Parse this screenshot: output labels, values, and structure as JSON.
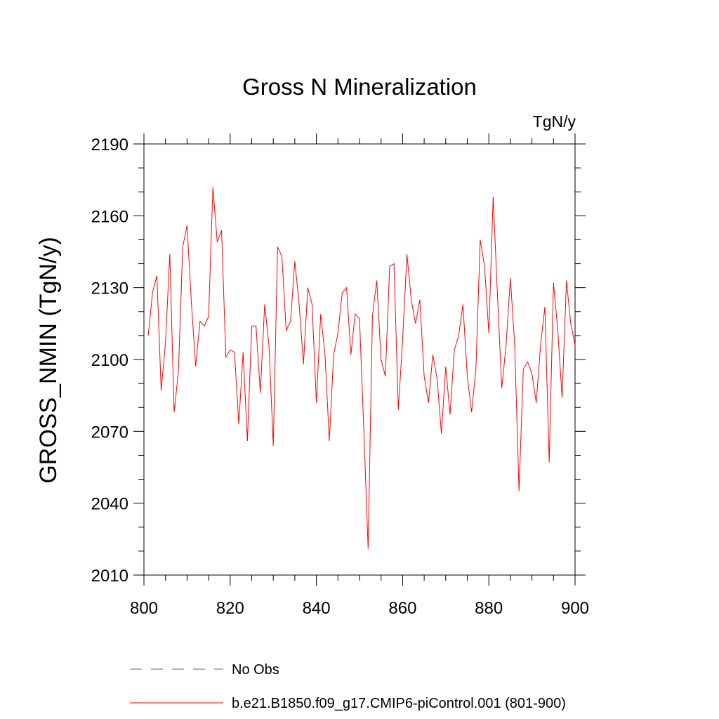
{
  "chart_data": {
    "type": "line",
    "title": "Gross N Mineralization",
    "units_label": "TgN/y",
    "ylabel": "GROSS_NMIN  (TgN/y)",
    "xlabel": "",
    "xlim": [
      800,
      900
    ],
    "ylim": [
      2010,
      2190
    ],
    "x_ticks": [
      800,
      820,
      840,
      860,
      880,
      900
    ],
    "y_ticks": [
      2010,
      2040,
      2070,
      2100,
      2130,
      2160,
      2190
    ],
    "grid": false,
    "colors": {
      "model": "#ff0000",
      "obs": "#6a5acd",
      "axis": "#000000"
    },
    "legend": [
      {
        "name": "No Obs",
        "style": "dashed",
        "color": "#6a5acd"
      },
      {
        "name": "b.e21.B1850.f09_g17.CMIP6-piControl.001 (801-900)",
        "style": "solid",
        "color": "#ff0000"
      }
    ],
    "series": [
      {
        "name": "b.e21.B1850.f09_g17.CMIP6-piControl.001 (801-900)",
        "x": [
          801,
          802,
          803,
          804,
          805,
          806,
          807,
          808,
          809,
          810,
          811,
          812,
          813,
          814,
          815,
          816,
          817,
          818,
          819,
          820,
          821,
          822,
          823,
          824,
          825,
          826,
          827,
          828,
          829,
          830,
          831,
          832,
          833,
          834,
          835,
          836,
          837,
          838,
          839,
          840,
          841,
          842,
          843,
          844,
          845,
          846,
          847,
          848,
          849,
          850,
          851,
          852,
          853,
          854,
          855,
          856,
          857,
          858,
          859,
          860,
          861,
          862,
          863,
          864,
          865,
          866,
          867,
          868,
          869,
          870,
          871,
          872,
          873,
          874,
          875,
          876,
          877,
          878,
          879,
          880,
          881,
          882,
          883,
          884,
          885,
          886,
          887,
          888,
          889,
          890,
          891,
          892,
          893,
          894,
          895,
          896,
          897,
          898,
          899,
          900
        ],
        "values": [
          2110,
          2128,
          2135,
          2087,
          2107,
          2144,
          2078,
          2095,
          2147,
          2156,
          2124,
          2097,
          2116,
          2114,
          2118,
          2172,
          2149,
          2154,
          2101,
          2104,
          2103,
          2073,
          2103,
          2066,
          2114,
          2114,
          2086,
          2123,
          2106,
          2064,
          2147,
          2143,
          2112,
          2116,
          2141,
          2123,
          2098,
          2130,
          2123,
          2082,
          2119,
          2102,
          2066,
          2102,
          2111,
          2128,
          2130,
          2102,
          2119,
          2117,
          2071,
          2021,
          2118,
          2133,
          2100,
          2093,
          2139,
          2140,
          2079,
          2108,
          2144,
          2125,
          2115,
          2125,
          2093,
          2082,
          2102,
          2092,
          2069,
          2097,
          2077,
          2104,
          2110,
          2123,
          2093,
          2078,
          2096,
          2150,
          2139,
          2111,
          2168,
          2127,
          2088,
          2106,
          2134,
          2106,
          2045,
          2096,
          2099,
          2094,
          2082,
          2106,
          2122,
          2057,
          2132,
          2112,
          2084,
          2133,
          2115,
          2106
        ]
      }
    ]
  }
}
